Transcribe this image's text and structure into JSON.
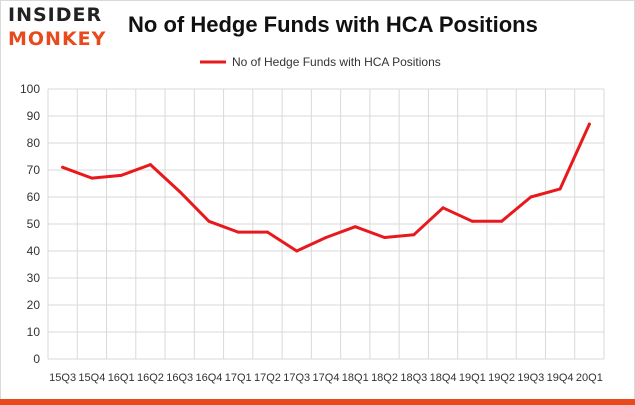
{
  "brand": {
    "line1": "INSIDER",
    "line2": "MONKEY"
  },
  "colors": {
    "series": "#e8191d",
    "brand_accent": "#e8491d",
    "grid": "#d9d9d9"
  },
  "chart_data": {
    "type": "line",
    "title": "No of Hedge Funds with HCA Positions",
    "legend_position": "top-center",
    "grid": true,
    "ylim": [
      0,
      100
    ],
    "yticks": [
      0,
      10,
      20,
      30,
      40,
      50,
      60,
      70,
      80,
      90,
      100
    ],
    "categories": [
      "15Q3",
      "15Q4",
      "16Q1",
      "16Q2",
      "16Q3",
      "16Q4",
      "17Q1",
      "17Q2",
      "17Q3",
      "17Q4",
      "18Q1",
      "18Q2",
      "18Q3",
      "18Q4",
      "19Q1",
      "19Q2",
      "19Q3",
      "19Q4",
      "20Q1"
    ],
    "series": [
      {
        "name": "No of Hedge Funds with HCA Positions",
        "values": [
          71,
          67,
          68,
          72,
          62,
          51,
          47,
          47,
          40,
          45,
          49,
          45,
          46,
          56,
          51,
          51,
          60,
          63,
          87
        ]
      }
    ]
  }
}
